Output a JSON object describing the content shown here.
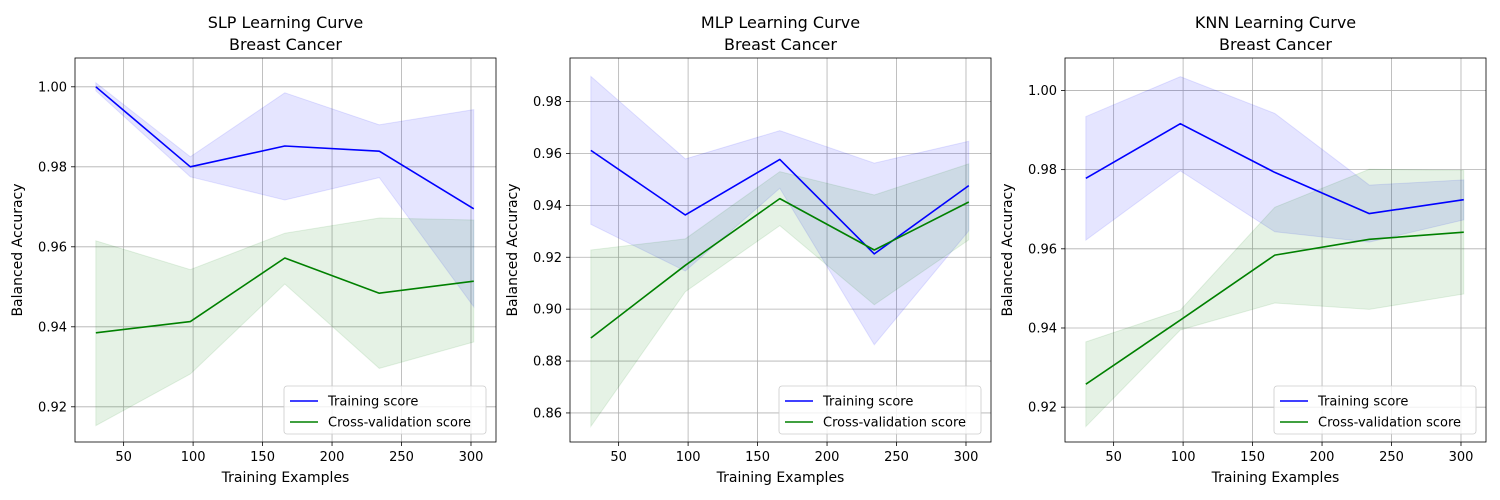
{
  "chart_data": [
    {
      "type": "line",
      "title": "SLP Learning Curve",
      "subtitle": "Breast Cancer",
      "xlabel": "Training Examples",
      "ylabel": "Balanced Accuracy",
      "xlim": [
        15,
        318
      ],
      "ylim": [
        0.9112,
        1.0072
      ],
      "xticks": [
        50,
        100,
        150,
        200,
        250,
        300
      ],
      "yticks": [
        0.92,
        0.94,
        0.96,
        0.98,
        1.0
      ],
      "ytick_labels": [
        "0.92",
        "0.94",
        "0.96",
        "0.98",
        "1.00"
      ],
      "grid": true,
      "legend_position": "lower right",
      "x": [
        30,
        98,
        166,
        234,
        302
      ],
      "series": [
        {
          "name": "Training score",
          "color": "#0000ff",
          "values": [
            1.0,
            0.98,
            0.9852,
            0.9839,
            0.9695
          ],
          "lower": [
            0.999,
            0.9775,
            0.9717,
            0.9773,
            0.945
          ],
          "upper": [
            1.001,
            0.9825,
            0.9985,
            0.9905,
            0.9943
          ]
        },
        {
          "name": "Cross-validation score",
          "color": "#008000",
          "values": [
            0.9385,
            0.9413,
            0.9572,
            0.9484,
            0.9514
          ],
          "lower": [
            0.9153,
            0.9282,
            0.9507,
            0.9296,
            0.9362
          ],
          "upper": [
            0.9615,
            0.9543,
            0.9634,
            0.9672,
            0.9667
          ]
        }
      ]
    },
    {
      "type": "line",
      "title": "MLP Learning Curve",
      "subtitle": "Breast Cancer",
      "xlabel": "Training Examples",
      "ylabel": "Balanced Accuracy",
      "xlim": [
        15,
        318
      ],
      "ylim": [
        0.8488,
        0.9968
      ],
      "xticks": [
        50,
        100,
        150,
        200,
        250,
        300
      ],
      "yticks": [
        0.86,
        0.88,
        0.9,
        0.92,
        0.94,
        0.96,
        0.98
      ],
      "ytick_labels": [
        "0.86",
        "0.88",
        "0.90",
        "0.92",
        "0.94",
        "0.96",
        "0.98"
      ],
      "grid": true,
      "legend_position": "lower right",
      "x": [
        30,
        98,
        166,
        234,
        302
      ],
      "series": [
        {
          "name": "Training score",
          "color": "#0000ff",
          "values": [
            0.9612,
            0.9363,
            0.9577,
            0.9213,
            0.9476
          ],
          "lower": [
            0.9327,
            0.9147,
            0.9466,
            0.8863,
            0.9302
          ],
          "upper": [
            0.9897,
            0.9579,
            0.9688,
            0.9563,
            0.9647
          ]
        },
        {
          "name": "Cross-validation score",
          "color": "#008000",
          "values": [
            0.8889,
            0.9169,
            0.9426,
            0.9228,
            0.9413
          ],
          "lower": [
            0.8548,
            0.9067,
            0.9322,
            0.9017,
            0.9267
          ],
          "upper": [
            0.9228,
            0.9271,
            0.953,
            0.944,
            0.956
          ]
        }
      ]
    },
    {
      "type": "line",
      "title": "KNN Learning Curve",
      "subtitle": "Breast Cancer",
      "xlabel": "Training Examples",
      "ylabel": "Balanced Accuracy",
      "xlim": [
        15,
        318
      ],
      "ylim": [
        0.9112,
        1.0082
      ],
      "xticks": [
        50,
        100,
        150,
        200,
        250,
        300
      ],
      "yticks": [
        0.92,
        0.94,
        0.96,
        0.98,
        1.0
      ],
      "ytick_labels": [
        "0.92",
        "0.94",
        "0.96",
        "0.98",
        "1.00"
      ],
      "grid": true,
      "legend_position": "lower right",
      "x": [
        30,
        98,
        166,
        234,
        302
      ],
      "series": [
        {
          "name": "Training score",
          "color": "#0000ff",
          "values": [
            0.9778,
            0.9916,
            0.9793,
            0.9689,
            0.9724
          ],
          "lower": [
            0.9622,
            0.9797,
            0.9643,
            0.9617,
            0.9673
          ],
          "upper": [
            0.9934,
            1.0035,
            0.9942,
            0.9761,
            0.9774
          ]
        },
        {
          "name": "Cross-validation score",
          "color": "#008000",
          "values": [
            0.9258,
            0.942,
            0.9584,
            0.9624,
            0.9642
          ],
          "lower": [
            0.9151,
            0.9395,
            0.9463,
            0.9447,
            0.9486
          ],
          "upper": [
            0.9365,
            0.9445,
            0.9705,
            0.9801,
            0.9798
          ]
        }
      ]
    }
  ]
}
